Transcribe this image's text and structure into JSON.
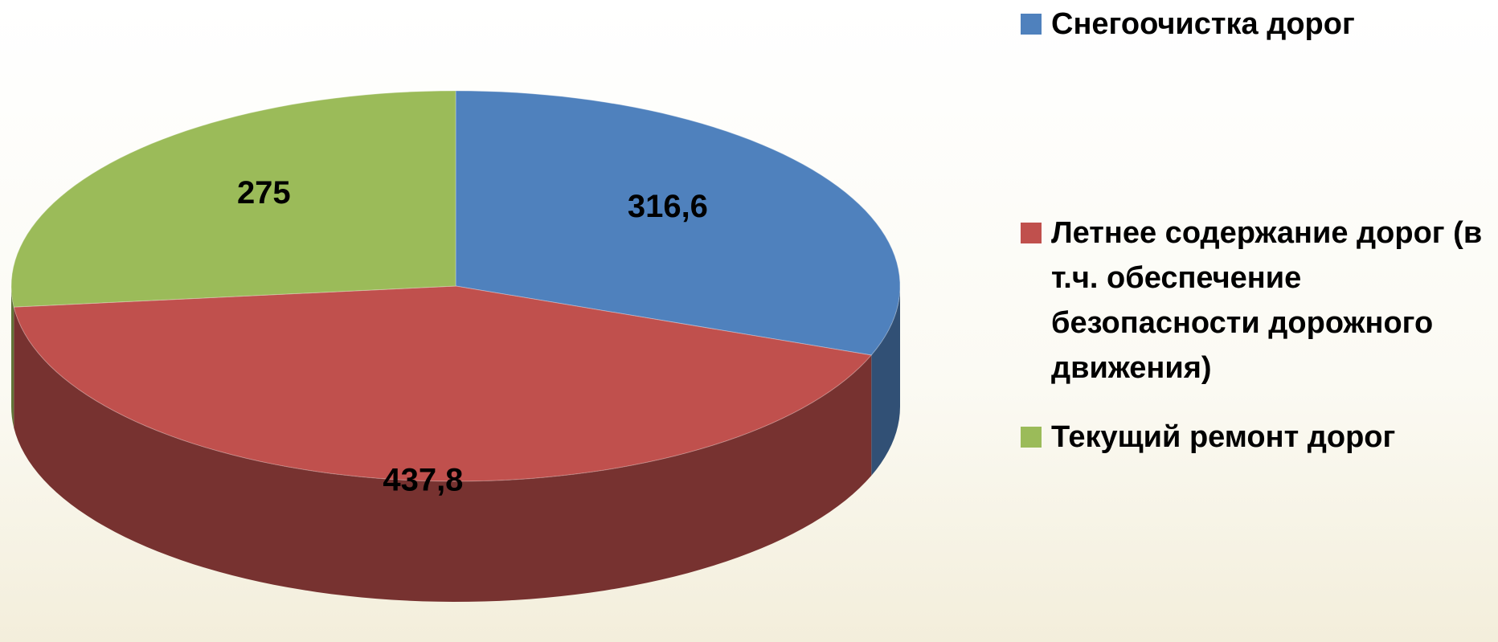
{
  "chart_data": {
    "type": "pie",
    "categories": [
      "Снегоочистка дорог",
      "Летнее содержание дорог (в т.ч. обеспечение безопасности дорожного движения)",
      "Текущий ремонт дорог"
    ],
    "values": [
      316.6,
      437.8,
      275
    ],
    "value_labels": [
      "316,6",
      "437,8",
      "275"
    ],
    "colors": [
      "#4f81bd",
      "#c0504d",
      "#9bbb59"
    ],
    "legend": "right"
  }
}
